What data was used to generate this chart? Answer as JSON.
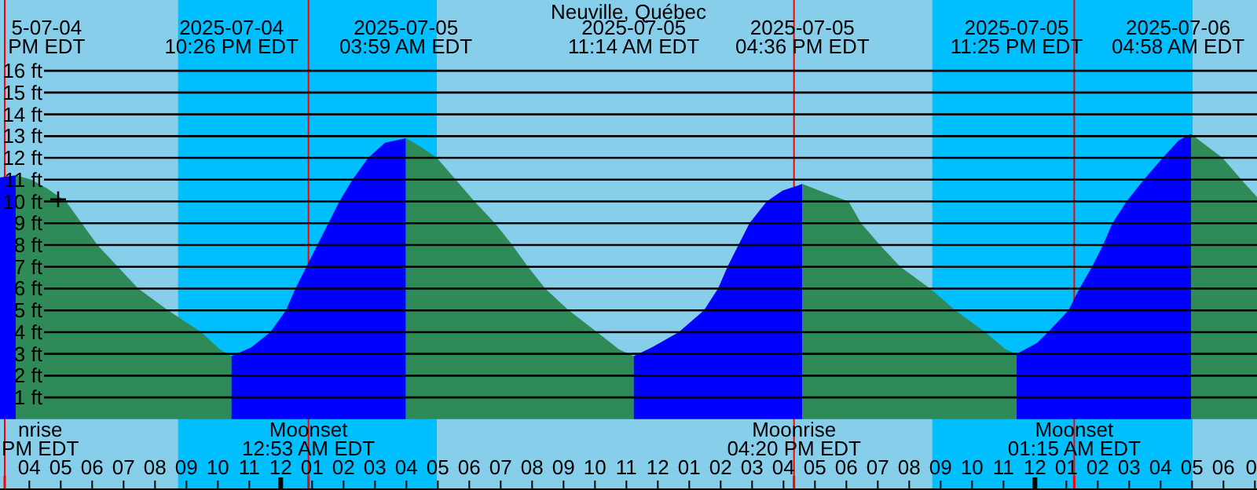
{
  "chart_data": {
    "type": "area",
    "title": "Neuville, Québec",
    "xlim": [
      "2025-07-04T15:04",
      "2025-07-06T07:04"
    ],
    "ylim": [
      -3.25,
      19.25
    ],
    "yticks": [
      {
        "value": 1,
        "label": "1 ft"
      },
      {
        "value": 2,
        "label": "2 ft"
      },
      {
        "value": 3,
        "label": "3 ft"
      },
      {
        "value": 4,
        "label": "4 ft"
      },
      {
        "value": 5,
        "label": "5 ft"
      },
      {
        "value": 6,
        "label": "6 ft"
      },
      {
        "value": 7,
        "label": "7 ft"
      },
      {
        "value": 8,
        "label": "8 ft"
      },
      {
        "value": 9,
        "label": "9 ft"
      },
      {
        "value": 10,
        "label": "10 ft"
      },
      {
        "value": 11,
        "label": "11 ft"
      },
      {
        "value": 12,
        "label": "12 ft"
      },
      {
        "value": 13,
        "label": "13 ft"
      },
      {
        "value": 14,
        "label": "14 ft"
      },
      {
        "value": 15,
        "label": "15 ft"
      },
      {
        "value": 16,
        "label": "16 ft"
      }
    ],
    "xticks": [
      {
        "value": "2025-07-04T16:00",
        "label": "04"
      },
      {
        "value": "2025-07-04T17:00",
        "label": "05"
      },
      {
        "value": "2025-07-04T18:00",
        "label": "06"
      },
      {
        "value": "2025-07-04T19:00",
        "label": "07"
      },
      {
        "value": "2025-07-04T20:00",
        "label": "08"
      },
      {
        "value": "2025-07-04T21:00",
        "label": "09"
      },
      {
        "value": "2025-07-04T22:00",
        "label": "10"
      },
      {
        "value": "2025-07-04T23:00",
        "label": "11"
      },
      {
        "value": "2025-07-05T00:00",
        "label": "12"
      },
      {
        "value": "2025-07-05T01:00",
        "label": "01"
      },
      {
        "value": "2025-07-05T02:00",
        "label": "02"
      },
      {
        "value": "2025-07-05T03:00",
        "label": "03"
      },
      {
        "value": "2025-07-05T04:00",
        "label": "04"
      },
      {
        "value": "2025-07-05T05:00",
        "label": "05"
      },
      {
        "value": "2025-07-05T06:00",
        "label": "06"
      },
      {
        "value": "2025-07-05T07:00",
        "label": "07"
      },
      {
        "value": "2025-07-05T08:00",
        "label": "08"
      },
      {
        "value": "2025-07-05T09:00",
        "label": "09"
      },
      {
        "value": "2025-07-05T10:00",
        "label": "10"
      },
      {
        "value": "2025-07-05T11:00",
        "label": "11"
      },
      {
        "value": "2025-07-05T12:00",
        "label": "12"
      },
      {
        "value": "2025-07-05T13:00",
        "label": "01"
      },
      {
        "value": "2025-07-05T14:00",
        "label": "02"
      },
      {
        "value": "2025-07-05T15:00",
        "label": "03"
      },
      {
        "value": "2025-07-05T16:00",
        "label": "04"
      },
      {
        "value": "2025-07-05T17:00",
        "label": "05"
      },
      {
        "value": "2025-07-05T18:00",
        "label": "06"
      },
      {
        "value": "2025-07-05T19:00",
        "label": "07"
      },
      {
        "value": "2025-07-05T20:00",
        "label": "08"
      },
      {
        "value": "2025-07-05T21:00",
        "label": "09"
      },
      {
        "value": "2025-07-05T22:00",
        "label": "10"
      },
      {
        "value": "2025-07-05T23:00",
        "label": "11"
      },
      {
        "value": "2025-07-06T00:00",
        "label": "12"
      },
      {
        "value": "2025-07-06T01:00",
        "label": "01"
      },
      {
        "value": "2025-07-06T02:00",
        "label": "02"
      },
      {
        "value": "2025-07-06T03:00",
        "label": "03"
      },
      {
        "value": "2025-07-06T04:00",
        "label": "04"
      },
      {
        "value": "2025-07-06T05:00",
        "label": "05"
      },
      {
        "value": "2025-07-06T06:00",
        "label": "06"
      },
      {
        "value": "2025-07-06T07:00",
        "label": "0"
      }
    ],
    "grid": "y",
    "bands": [
      {
        "axis": "x",
        "from": "2025-07-04T20:44",
        "to": "2025-07-05T04:58",
        "color": "#00bfff"
      },
      {
        "axis": "x",
        "from": "2025-07-05T20:44",
        "to": "2025-07-06T05:01",
        "color": "#00bfff"
      }
    ],
    "x": [
      "2025-07-04T15:04",
      "2025-07-04T15:34",
      "2025-07-04T16:04",
      "2025-07-04T16:34",
      "2025-07-04T17:10",
      "2025-07-04T17:40",
      "2025-07-04T18:10",
      "2025-07-04T18:49",
      "2025-07-04T19:28",
      "2025-07-04T20:25",
      "2025-07-04T21:28",
      "2025-07-04T22:04",
      "2025-07-04T22:26",
      "2025-07-04T23:04",
      "2025-07-04T23:40",
      "2025-07-05T00:10",
      "2025-07-05T00:28",
      "2025-07-05T00:49",
      "2025-07-05T01:10",
      "2025-07-05T01:31",
      "2025-07-05T01:52",
      "2025-07-05T02:17",
      "2025-07-05T02:47",
      "2025-07-05T03:19",
      "2025-07-05T03:59",
      "2025-07-05T04:28",
      "2025-07-05T04:58",
      "2025-07-05T05:34",
      "2025-07-05T06:10",
      "2025-07-05T06:49",
      "2025-07-05T07:22",
      "2025-07-05T07:52",
      "2025-07-05T08:25",
      "2025-07-05T09:10",
      "2025-07-05T10:04",
      "2025-07-05T10:46",
      "2025-07-05T11:14",
      "2025-07-05T11:49",
      "2025-07-05T12:40",
      "2025-07-05T13:28",
      "2025-07-05T13:55",
      "2025-07-05T14:13",
      "2025-07-05T14:34",
      "2025-07-05T14:55",
      "2025-07-05T15:28",
      "2025-07-05T15:58",
      "2025-07-05T16:36",
      "2025-07-05T17:19",
      "2025-07-05T18:04",
      "2025-07-05T18:28",
      "2025-07-05T19:04",
      "2025-07-05T19:43",
      "2025-07-05T20:40",
      "2025-07-05T21:28",
      "2025-07-05T22:25",
      "2025-07-05T23:04",
      "2025-07-05T23:25",
      "2025-07-06T00:04",
      "2025-07-06T00:25",
      "2025-07-06T01:04",
      "2025-07-06T01:25",
      "2025-07-06T01:49",
      "2025-07-06T02:10",
      "2025-07-06T02:28",
      "2025-07-06T02:55",
      "2025-07-06T03:28",
      "2025-07-06T04:04",
      "2025-07-06T04:34",
      "2025-07-06T04:58",
      "2025-07-06T05:58",
      "2025-07-06T06:34",
      "2025-07-06T07:04"
    ],
    "series": [
      {
        "color": "#0000ff",
        "values": [
          11.1,
          11.2,
          null,
          null,
          null,
          null,
          null,
          null,
          null,
          null,
          null,
          null,
          null,
          null,
          null,
          null,
          null,
          null,
          null,
          null,
          null,
          null,
          null,
          null,
          null,
          null,
          null,
          null,
          null,
          null,
          null,
          null,
          null,
          null,
          null,
          null,
          null,
          null,
          null,
          null,
          null,
          null,
          null,
          null,
          null,
          null,
          null,
          null,
          null,
          null,
          null,
          null,
          null,
          null,
          null,
          null,
          null,
          null,
          null,
          null,
          null,
          null,
          null,
          null,
          null,
          null,
          null,
          null,
          null,
          null,
          null,
          null
        ]
      },
      {
        "color": "#2e8b57",
        "values": [
          null,
          11.2,
          11,
          10.6,
          10,
          9,
          8,
          7,
          6,
          5,
          4,
          3.2,
          2.9,
          null,
          null,
          null,
          null,
          null,
          null,
          null,
          null,
          null,
          null,
          null,
          null,
          null,
          null,
          null,
          null,
          null,
          null,
          null,
          null,
          null,
          null,
          null,
          null,
          null,
          null,
          null,
          null,
          null,
          null,
          null,
          null,
          null,
          null,
          null,
          null,
          null,
          null,
          null,
          null,
          null,
          null,
          null,
          null,
          null,
          null,
          null,
          null,
          null,
          null,
          null,
          null,
          null,
          null,
          null,
          null,
          null,
          null,
          null
        ]
      },
      {
        "color": "#0000ff",
        "values": [
          null,
          null,
          null,
          null,
          null,
          null,
          null,
          null,
          null,
          null,
          null,
          null,
          2.9,
          3.3,
          4,
          5,
          6,
          7,
          8,
          9,
          10,
          11,
          12,
          12.7,
          12.9,
          null,
          null,
          null,
          null,
          null,
          null,
          null,
          null,
          null,
          null,
          null,
          null,
          null,
          null,
          null,
          null,
          null,
          null,
          null,
          null,
          null,
          null,
          null,
          null,
          null,
          null,
          null,
          null,
          null,
          null,
          null,
          null,
          null,
          null,
          null,
          null,
          null,
          null,
          null,
          null,
          null,
          null,
          null,
          null,
          null,
          null,
          null
        ]
      },
      {
        "color": "#2e8b57",
        "values": [
          null,
          null,
          null,
          null,
          null,
          null,
          null,
          null,
          null,
          null,
          null,
          null,
          null,
          null,
          null,
          null,
          null,
          null,
          null,
          null,
          null,
          null,
          null,
          null,
          12.9,
          12.5,
          12,
          11,
          10,
          9,
          8,
          7,
          6,
          5,
          4,
          3.2,
          2.9,
          null,
          null,
          null,
          null,
          null,
          null,
          null,
          null,
          null,
          null,
          null,
          null,
          null,
          null,
          null,
          null,
          null,
          null,
          null,
          null,
          null,
          null,
          null,
          null,
          null,
          null,
          null,
          null,
          null,
          null,
          null,
          null,
          null,
          null,
          null
        ]
      },
      {
        "color": "#0000ff",
        "values": [
          null,
          null,
          null,
          null,
          null,
          null,
          null,
          null,
          null,
          null,
          null,
          null,
          null,
          null,
          null,
          null,
          null,
          null,
          null,
          null,
          null,
          null,
          null,
          null,
          null,
          null,
          null,
          null,
          null,
          null,
          null,
          null,
          null,
          null,
          null,
          null,
          2.9,
          3.3,
          4,
          5,
          6,
          7,
          8,
          9,
          10,
          10.5,
          10.8,
          null,
          null,
          null,
          null,
          null,
          null,
          null,
          null,
          null,
          null,
          null,
          null,
          null,
          null,
          null,
          null,
          null,
          null,
          null,
          null,
          null,
          null,
          null,
          null,
          null
        ]
      },
      {
        "color": "#2e8b57",
        "values": [
          null,
          null,
          null,
          null,
          null,
          null,
          null,
          null,
          null,
          null,
          null,
          null,
          null,
          null,
          null,
          null,
          null,
          null,
          null,
          null,
          null,
          null,
          null,
          null,
          null,
          null,
          null,
          null,
          null,
          null,
          null,
          null,
          null,
          null,
          null,
          null,
          null,
          null,
          null,
          null,
          null,
          null,
          null,
          null,
          null,
          null,
          10.8,
          10.4,
          10,
          9,
          8,
          7,
          6,
          5,
          4,
          3.2,
          3,
          null,
          null,
          null,
          null,
          null,
          null,
          null,
          null,
          null,
          null,
          null,
          null,
          null,
          null,
          null
        ]
      },
      {
        "color": "#0000ff",
        "values": [
          null,
          null,
          null,
          null,
          null,
          null,
          null,
          null,
          null,
          null,
          null,
          null,
          null,
          null,
          null,
          null,
          null,
          null,
          null,
          null,
          null,
          null,
          null,
          null,
          null,
          null,
          null,
          null,
          null,
          null,
          null,
          null,
          null,
          null,
          null,
          null,
          null,
          null,
          null,
          null,
          null,
          null,
          null,
          null,
          null,
          null,
          null,
          null,
          null,
          null,
          null,
          null,
          null,
          null,
          null,
          null,
          3,
          3.5,
          4,
          5,
          6,
          7,
          8,
          9,
          10,
          11,
          12,
          12.8,
          13.1,
          null,
          null,
          null
        ]
      },
      {
        "color": "#2e8b57",
        "values": [
          null,
          null,
          null,
          null,
          null,
          null,
          null,
          null,
          null,
          null,
          null,
          null,
          null,
          null,
          null,
          null,
          null,
          null,
          null,
          null,
          null,
          null,
          null,
          null,
          null,
          null,
          null,
          null,
          null,
          null,
          null,
          null,
          null,
          null,
          null,
          null,
          null,
          null,
          null,
          null,
          null,
          null,
          null,
          null,
          null,
          null,
          null,
          null,
          null,
          null,
          null,
          null,
          null,
          null,
          null,
          null,
          null,
          null,
          null,
          null,
          null,
          null,
          null,
          null,
          null,
          null,
          null,
          null,
          13.1,
          12,
          11,
          10.2
        ]
      },
      {
        "type": "scatter",
        "color": "#000000",
        "marker": "cross",
        "x": [
          "2025-07-04T16:55"
        ],
        "values": [
          10.1
        ]
      }
    ],
    "ref_lines": [
      {
        "axis": "x",
        "value": "2025-07-04T15:13",
        "label": "nrise\nPM EDT",
        "color": "#ff0000"
      },
      {
        "axis": "x",
        "value": "2025-07-05T00:53",
        "label": "Moonset\n12:53 AM EDT",
        "color": "#ff0000"
      },
      {
        "axis": "x",
        "value": "2025-07-05T16:20",
        "label": "Moonrise\n04:20 PM EDT",
        "color": "#ff0000"
      },
      {
        "axis": "x",
        "value": "2025-07-06T01:15",
        "label": "Moonset\n01:15 AM EDT",
        "color": "#ff0000"
      }
    ],
    "annotations": [
      "5-07-04\nPM EDT",
      "2025-07-04\n10:26 PM EDT",
      "2025-07-05\n03:59 AM EDT",
      "2025-07-05\n11:14 AM EDT",
      "2025-07-05\n04:36 PM EDT",
      "2025-07-05\n11:25 PM EDT",
      "2025-07-06\n04:58 AM EDT"
    ]
  }
}
